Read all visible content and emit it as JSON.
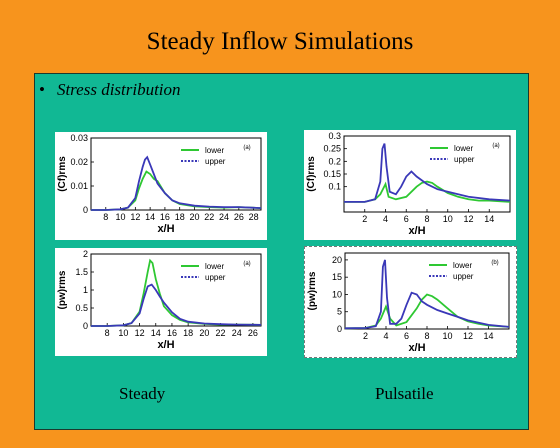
{
  "slide": {
    "title": "Steady Inflow Simulations",
    "bullet": "Stress distribution",
    "captions": [
      "Steady",
      "Pulsatile"
    ]
  },
  "colors": {
    "background": "#f7941d",
    "panel": "#11b894",
    "lower": "#2ec832",
    "upper": "#3a38b8"
  },
  "chart_data": [
    {
      "id": "steady-cf",
      "type": "line",
      "ylabel": "(Cf)rms",
      "xlabel": "x/H",
      "panel_tag": "(a)",
      "xlim": [
        6,
        29
      ],
      "ylim": [
        0,
        0.03
      ],
      "xticks": [
        "8",
        "10",
        "12",
        "14",
        "16",
        "18",
        "20",
        "22",
        "24",
        "26",
        "28"
      ],
      "yticks": [
        "0",
        "0.01",
        "0.02",
        "0.03"
      ],
      "legend": [
        "lower",
        "upper"
      ],
      "series": [
        {
          "name": "lower",
          "x": [
            6,
            8,
            10,
            11,
            12,
            12.5,
            13,
            13.5,
            14,
            14.5,
            15,
            16,
            17,
            18,
            20,
            22,
            24,
            26,
            29
          ],
          "y": [
            0,
            0,
            0.0003,
            0.001,
            0.004,
            0.009,
            0.013,
            0.016,
            0.015,
            0.013,
            0.012,
            0.007,
            0.004,
            0.0025,
            0.0015,
            0.0012,
            0.001,
            0.0012,
            0.0008
          ]
        },
        {
          "name": "upper",
          "x": [
            6,
            8,
            10,
            11,
            12,
            12.5,
            13,
            13.3,
            13.6,
            14,
            14.5,
            15,
            16,
            17,
            18,
            20,
            22,
            24,
            26,
            29
          ],
          "y": [
            0,
            0,
            0.0003,
            0.001,
            0.005,
            0.012,
            0.018,
            0.021,
            0.022,
            0.019,
            0.015,
            0.011,
            0.007,
            0.004,
            0.0028,
            0.0018,
            0.0014,
            0.0012,
            0.0012,
            0.0008
          ]
        }
      ]
    },
    {
      "id": "steady-pw",
      "type": "line",
      "ylabel": "(pw)rms",
      "xlabel": "x/H",
      "panel_tag": "(a)",
      "xlim": [
        6,
        27
      ],
      "ylim": [
        0,
        2
      ],
      "xticks": [
        "8",
        "10",
        "12",
        "14",
        "16",
        "18",
        "20",
        "22",
        "24",
        "26"
      ],
      "yticks": [
        "0",
        "0.5",
        "1",
        "1.5",
        "2"
      ],
      "legend": [
        "lower",
        "upper"
      ],
      "series": [
        {
          "name": "lower",
          "x": [
            6,
            8,
            10,
            11,
            12,
            12.5,
            13,
            13.3,
            13.6,
            14,
            14.5,
            15,
            16,
            17,
            18,
            20,
            22,
            24,
            27
          ],
          "y": [
            0,
            0,
            0.02,
            0.08,
            0.4,
            0.9,
            1.5,
            1.82,
            1.75,
            1.3,
            0.9,
            0.55,
            0.3,
            0.17,
            0.1,
            0.06,
            0.04,
            0.04,
            0.03
          ]
        },
        {
          "name": "upper",
          "x": [
            6,
            8,
            10,
            11,
            12,
            12.5,
            13,
            13.5,
            14,
            14.5,
            15,
            16,
            17,
            18,
            20,
            22,
            24,
            27
          ],
          "y": [
            0,
            0,
            0.02,
            0.08,
            0.35,
            0.75,
            1.1,
            1.15,
            1.0,
            0.82,
            0.65,
            0.38,
            0.2,
            0.12,
            0.07,
            0.05,
            0.04,
            0.03
          ]
        }
      ]
    },
    {
      "id": "pulsatile-cf",
      "type": "line",
      "ylabel": "(Cf)rms",
      "xlabel": "x/H",
      "panel_tag": "(a)",
      "xlim": [
        0,
        16
      ],
      "ylim": [
        0,
        0.3
      ],
      "xticks": [
        "2",
        "4",
        "6",
        "8",
        "10",
        "12",
        "14"
      ],
      "yticks": [
        "0.1",
        "0.15",
        "0.2",
        "0.25",
        "0.3"
      ],
      "legend": [
        "lower",
        "upper"
      ],
      "series": [
        {
          "name": "lower",
          "x": [
            0,
            2,
            3,
            3.5,
            4,
            4.3,
            5,
            6,
            7,
            7.5,
            8,
            8.5,
            9,
            10,
            11,
            12,
            13,
            14,
            16
          ],
          "y": [
            0.04,
            0.04,
            0.05,
            0.07,
            0.11,
            0.06,
            0.05,
            0.06,
            0.1,
            0.115,
            0.12,
            0.115,
            0.1,
            0.075,
            0.06,
            0.05,
            0.045,
            0.045,
            0.04
          ]
        },
        {
          "name": "upper",
          "x": [
            0,
            2,
            3,
            3.5,
            3.7,
            3.9,
            4.1,
            4.4,
            5,
            5.5,
            6,
            6.5,
            7,
            8,
            9,
            10,
            11,
            12,
            14,
            16
          ],
          "y": [
            0.04,
            0.04,
            0.05,
            0.12,
            0.25,
            0.27,
            0.18,
            0.08,
            0.07,
            0.1,
            0.14,
            0.16,
            0.14,
            0.11,
            0.09,
            0.08,
            0.07,
            0.06,
            0.05,
            0.045
          ]
        }
      ]
    },
    {
      "id": "pulsatile-pw",
      "type": "line",
      "ylabel": "(pw)rms",
      "xlabel": "x/H",
      "panel_tag": "(b)",
      "xlim": [
        0,
        16
      ],
      "ylim": [
        0,
        22
      ],
      "xticks": [
        "2",
        "4",
        "6",
        "8",
        "10",
        "12",
        "14"
      ],
      "yticks": [
        "0",
        "5",
        "10",
        "15",
        "20"
      ],
      "legend": [
        "lower",
        "upper"
      ],
      "series": [
        {
          "name": "lower",
          "x": [
            0,
            2,
            3,
            3.5,
            4,
            4.4,
            5,
            6,
            7,
            7.5,
            8,
            8.5,
            9,
            10,
            11,
            12,
            13,
            14,
            16
          ],
          "y": [
            0.2,
            0.3,
            1,
            3,
            6.5,
            3,
            1,
            2,
            6,
            8.5,
            10,
            9.5,
            8.5,
            6,
            3.5,
            2.2,
            1.5,
            1,
            0.6
          ]
        },
        {
          "name": "upper",
          "x": [
            0,
            2,
            3,
            3.5,
            3.7,
            3.9,
            4.1,
            4.4,
            5,
            5.5,
            6,
            6.5,
            7,
            7.5,
            8,
            9,
            10,
            11,
            12,
            14,
            16
          ],
          "y": [
            0.2,
            0.3,
            0.8,
            5,
            18,
            20,
            9,
            1.5,
            1.5,
            3,
            7,
            10.5,
            10,
            8,
            7,
            5.5,
            4.5,
            3.5,
            2.5,
            1.2,
            0.6
          ]
        }
      ]
    }
  ]
}
